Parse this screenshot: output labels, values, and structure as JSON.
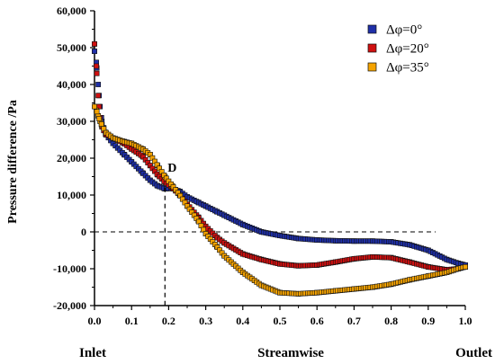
{
  "chart_data": {
    "type": "scatter",
    "ylabel": "Pressure difference /Pa",
    "xlim": [
      0.0,
      1.0
    ],
    "ylim": [
      -20000,
      60000
    ],
    "x_ticks": [
      0.0,
      0.1,
      0.2,
      0.3,
      0.4,
      0.5,
      0.6,
      0.7,
      0.8,
      0.9,
      1.0
    ],
    "x_tick_labels": [
      "0.0",
      "0.1",
      "0.2",
      "0.3",
      "0.4",
      "0.5",
      "0.6",
      "0.7",
      "0.8",
      "0.9",
      "1.0"
    ],
    "y_ticks": [
      -20000,
      -10000,
      0,
      10000,
      20000,
      30000,
      40000,
      50000,
      60000
    ],
    "y_tick_labels": [
      "-20,000",
      "-10,000",
      "0",
      "10,000",
      "20,000",
      "30,000",
      "40,000",
      "50,000",
      "60,000"
    ],
    "bottom_labels": {
      "left": "Inlet",
      "center": "Streamwise",
      "right": "Outlet"
    },
    "legend_position": "top-right",
    "reference_line": {
      "y": 0,
      "x_range": [
        0.0,
        0.92
      ],
      "style": "dashed"
    },
    "annotation": {
      "label": "D",
      "x": 0.19,
      "y": 12000,
      "drop_line_to_y": -20000
    },
    "series": [
      {
        "name": "Δφ=0°",
        "color": "#1f2fa8",
        "x": [
          0.0,
          0.005,
          0.01,
          0.015,
          0.02,
          0.03,
          0.05,
          0.08,
          0.1,
          0.13,
          0.15,
          0.17,
          0.19,
          0.21,
          0.23,
          0.25,
          0.28,
          0.3,
          0.33,
          0.35,
          0.4,
          0.45,
          0.5,
          0.55,
          0.6,
          0.65,
          0.7,
          0.75,
          0.8,
          0.85,
          0.9,
          0.95,
          0.98,
          1.0
        ],
        "y": [
          49000,
          46000,
          40000,
          34000,
          30000,
          26500,
          24000,
          21000,
          19000,
          16000,
          14000,
          12500,
          11700,
          11800,
          11000,
          9500,
          8000,
          7000,
          5500,
          4500,
          2000,
          0,
          -1000,
          -1800,
          -2200,
          -2400,
          -2500,
          -2500,
          -2700,
          -3500,
          -5000,
          -7500,
          -8500,
          -9000
        ]
      },
      {
        "name": "Δφ=20°",
        "color": "#d01010",
        "x": [
          0.0,
          0.005,
          0.01,
          0.015,
          0.02,
          0.03,
          0.05,
          0.08,
          0.1,
          0.13,
          0.15,
          0.17,
          0.19,
          0.21,
          0.23,
          0.25,
          0.28,
          0.3,
          0.33,
          0.35,
          0.4,
          0.45,
          0.5,
          0.55,
          0.6,
          0.65,
          0.7,
          0.75,
          0.8,
          0.85,
          0.9,
          0.95,
          0.98,
          1.0
        ],
        "y": [
          51000,
          45000,
          37000,
          31000,
          28500,
          26500,
          25500,
          24000,
          22500,
          20500,
          18000,
          15500,
          13500,
          12000,
          10000,
          7500,
          4000,
          1500,
          -1500,
          -3000,
          -6000,
          -7500,
          -8700,
          -9200,
          -9000,
          -8200,
          -7300,
          -6800,
          -7000,
          -8200,
          -9500,
          -10300,
          -10000,
          -9500
        ]
      },
      {
        "name": "Δφ=35°",
        "color": "#f5a300",
        "x": [
          0.0,
          0.005,
          0.01,
          0.015,
          0.02,
          0.03,
          0.05,
          0.08,
          0.1,
          0.13,
          0.15,
          0.17,
          0.19,
          0.21,
          0.23,
          0.25,
          0.28,
          0.3,
          0.33,
          0.35,
          0.4,
          0.45,
          0.5,
          0.55,
          0.6,
          0.65,
          0.7,
          0.75,
          0.8,
          0.85,
          0.9,
          0.95,
          0.98,
          1.0
        ],
        "y": [
          34000,
          33000,
          31500,
          30000,
          29000,
          27000,
          25500,
          24500,
          24000,
          22500,
          21000,
          18000,
          15000,
          12500,
          10000,
          7000,
          3000,
          -500,
          -4000,
          -6500,
          -11000,
          -14500,
          -16500,
          -16800,
          -16500,
          -16000,
          -15500,
          -15000,
          -14200,
          -13000,
          -12000,
          -11000,
          -10000,
          -9500
        ]
      }
    ]
  }
}
